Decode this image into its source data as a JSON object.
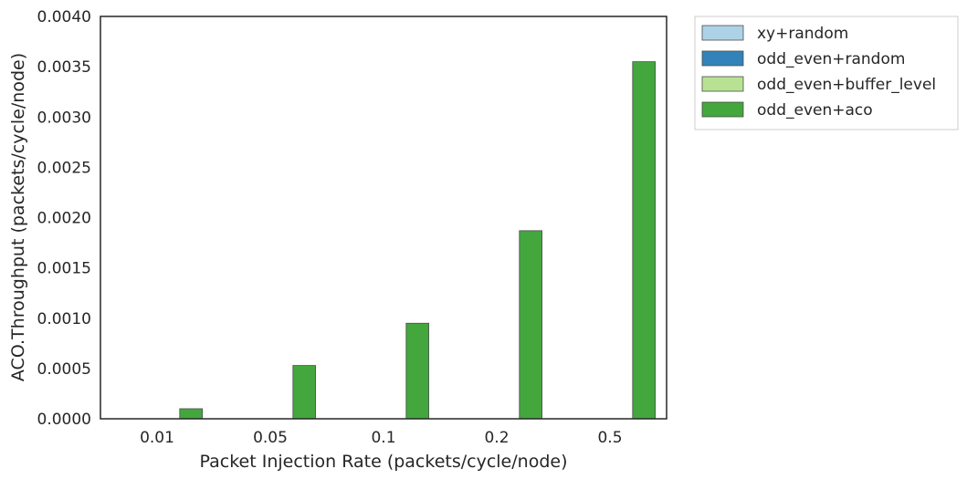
{
  "chart_data": {
    "type": "bar",
    "title": "",
    "xlabel": "Packet Injection Rate (packets/cycle/node)",
    "ylabel": "ACO.Throughput (packets/cycle/node)",
    "categories": [
      "0.01",
      "0.05",
      "0.1",
      "0.2",
      "0.5"
    ],
    "ylim": [
      0,
      0.004
    ],
    "yticks": [
      "0.0000",
      "0.0005",
      "0.0010",
      "0.0015",
      "0.0020",
      "0.0025",
      "0.0030",
      "0.0035",
      "0.0040"
    ],
    "grid": false,
    "legend_position": "outside-top-right",
    "series": [
      {
        "name": "xy+random",
        "color": "#a6cee3",
        "values": [
          0,
          0,
          0,
          0,
          0
        ]
      },
      {
        "name": "odd_even+random",
        "color": "#1f78b4",
        "values": [
          0,
          0,
          0,
          0,
          0
        ]
      },
      {
        "name": "odd_even+buffer_level",
        "color": "#b2df8a",
        "values": [
          0,
          0,
          0,
          0,
          0
        ]
      },
      {
        "name": "odd_even+aco",
        "color": "#33a02c",
        "values": [
          0.0001,
          0.00053,
          0.00095,
          0.00187,
          0.00355
        ]
      }
    ]
  }
}
